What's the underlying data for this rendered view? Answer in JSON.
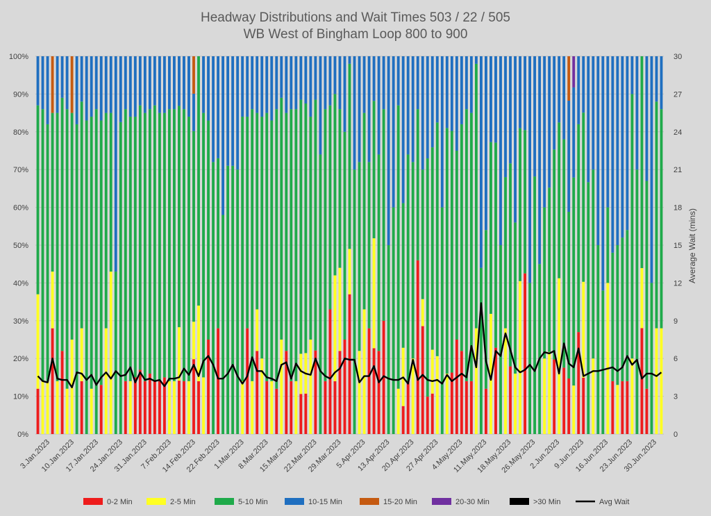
{
  "chart_data": {
    "type": "bar",
    "stacked": true,
    "percent_stacked": true,
    "title": "Headway Distributions and Wait Times 503 / 22 / 505",
    "subtitle": "WB West of Bingham Loop 800 to 900",
    "xlabel": "",
    "ylabel": "",
    "y2label": "Average Wait (mins)",
    "ylim": [
      0,
      100
    ],
    "y_ticks": [
      "0%",
      "10%",
      "20%",
      "30%",
      "40%",
      "50%",
      "60%",
      "70%",
      "80%",
      "90%",
      "100%"
    ],
    "y2lim": [
      0,
      30
    ],
    "y2_ticks": [
      "0",
      "3",
      "6",
      "9",
      "12",
      "15",
      "18",
      "21",
      "24",
      "27",
      "30"
    ],
    "x_tick_labels": [
      "3.Jan.2023",
      "10.Jan.2023",
      "17.Jan.2023",
      "24.Jan.2023",
      "31.Jan.2023",
      "7.Feb.2023",
      "14.Feb.2023",
      "22.Feb.2023",
      "1.Mar.2023",
      "8.Mar.2023",
      "15.Mar.2023",
      "22.Mar.2023",
      "29.Mar.2023",
      "5.Apr.2023",
      "13.Apr.2023",
      "20.Apr.2023",
      "27.Apr.2023",
      "4.May.2023",
      "11.May.2023",
      "18.May.2023",
      "26.May.2023",
      "2.Jun.2023",
      "9.Jun.2023",
      "16.Jun.2023",
      "23.Jun.2023",
      "30.Jun.2023"
    ],
    "legend_position": "bottom",
    "grid": true,
    "colors": {
      "0-2 Min": "#ee1c1c",
      "2-5 Min": "#ffff22",
      "5-10 Min": "#1faa4a",
      "10-15 Min": "#1f6fc0",
      "15-20 Min": "#c55a11",
      "20-30 Min": "#7030a0",
      ">30 Min": "#000000",
      "Avg Wait": "#000000"
    },
    "bar_count": 129,
    "series": [
      {
        "name": "0-2 Min",
        "values": [
          12,
          0,
          0,
          28,
          0,
          22,
          0,
          0,
          0,
          14,
          0,
          0,
          0,
          13,
          0,
          0,
          0,
          0,
          14,
          0,
          15,
          17,
          14,
          16,
          14,
          14,
          15,
          0,
          0,
          14,
          14,
          0,
          22,
          14,
          0,
          25,
          0,
          28,
          0,
          0,
          0,
          0,
          0,
          28,
          0,
          22,
          0,
          14,
          0,
          12,
          0,
          22,
          14,
          0,
          12,
          12,
          0,
          25,
          0,
          14,
          33,
          14,
          22,
          25,
          37,
          0,
          0,
          0,
          28,
          25,
          22,
          30,
          0,
          0,
          0,
          12,
          14,
          0,
          46,
          40,
          11,
          12,
          0,
          0,
          0,
          14,
          25,
          22,
          14,
          14,
          0,
          0,
          12,
          0,
          16,
          0,
          0,
          12,
          0,
          0,
          37,
          0,
          0,
          0,
          0,
          0,
          16,
          0,
          16,
          20,
          0,
          27,
          20,
          0,
          0,
          0,
          0,
          0,
          14,
          0,
          14,
          14,
          0,
          0,
          30,
          12,
          0,
          0,
          0
        ]
      },
      {
        "name": "2-5 Min",
        "values": [
          25,
          14,
          14,
          15,
          14,
          0,
          12,
          25,
          0,
          14,
          0,
          12,
          0,
          0,
          28,
          43,
          0,
          0,
          0,
          14,
          0,
          0,
          0,
          0,
          0,
          0,
          0,
          14,
          14,
          14,
          0,
          14,
          11,
          20,
          15,
          0,
          0,
          0,
          0,
          0,
          0,
          0,
          14,
          0,
          14,
          11,
          20,
          0,
          14,
          0,
          25,
          0,
          0,
          14,
          12,
          12,
          25,
          0,
          0,
          0,
          0,
          28,
          22,
          0,
          12,
          0,
          22,
          33,
          0,
          32,
          0,
          0,
          0,
          0,
          12,
          25,
          0,
          20,
          0,
          10,
          0,
          13,
          20,
          0,
          16,
          0,
          0,
          0,
          0,
          0,
          28,
          0,
          0,
          28,
          0,
          0,
          28,
          0,
          16,
          34,
          0,
          0,
          0,
          0,
          20,
          20,
          0,
          40,
          0,
          0,
          14,
          0,
          34,
          0,
          20,
          0,
          0,
          40,
          0,
          13,
          0,
          0,
          20,
          0,
          17,
          0,
          0,
          28,
          28
        ]
      },
      {
        "name": "5-10 Min",
        "values": [
          50,
          72,
          68,
          42,
          71,
          67,
          74,
          60,
          82,
          60,
          83,
          72,
          86,
          70,
          57,
          42,
          43,
          71,
          72,
          70,
          69,
          70,
          71,
          70,
          73,
          71,
          70,
          72,
          72,
          58,
          72,
          70,
          56,
          66,
          70,
          58,
          72,
          45,
          58,
          71,
          71,
          70,
          70,
          56,
          72,
          52,
          64,
          71,
          69,
          74,
          64,
          63,
          72,
          72,
          76,
          74,
          59,
          75,
          74,
          72,
          54,
          48,
          42,
          55,
          49,
          70,
          50,
          52,
          44,
          40,
          52,
          56,
          50,
          60,
          75,
          62,
          60,
          52,
          40,
          48,
          70,
          60,
          60,
          60,
          65,
          55,
          50,
          60,
          72,
          71,
          70,
          44,
          42,
          40,
          38,
          45,
          40,
          36,
          40,
          34,
          33,
          40,
          60,
          45,
          40,
          40,
          45,
          40,
          55,
          60,
          60,
          55,
          60,
          40,
          50,
          40,
          38,
          20,
          34,
          37,
          38,
          40,
          70,
          70,
          60,
          55,
          40,
          60,
          58
        ]
      },
      {
        "name": "10-15 Min",
        "values": [
          13,
          14,
          18,
          0,
          15,
          11,
          14,
          0,
          18,
          12,
          17,
          16,
          14,
          17,
          15,
          15,
          57,
          15,
          14,
          16,
          16,
          13,
          15,
          14,
          13,
          15,
          15,
          14,
          14,
          13,
          14,
          16,
          11,
          0,
          15,
          17,
          28,
          27,
          42,
          29,
          29,
          30,
          16,
          16,
          14,
          15,
          16,
          15,
          17,
          14,
          11,
          15,
          14,
          14,
          13,
          14,
          16,
          13,
          26,
          14,
          13,
          10,
          14,
          20,
          2,
          30,
          28,
          15,
          28,
          13,
          26,
          14,
          50,
          40,
          13,
          63,
          26,
          28,
          14,
          42,
          30,
          27,
          17,
          40,
          19,
          17,
          25,
          18,
          14,
          15,
          2,
          56,
          46,
          20,
          16,
          45,
          32,
          19,
          44,
          16,
          17,
          60,
          28,
          55,
          40,
          32,
          20,
          17,
          20,
          40,
          26,
          18,
          20,
          20,
          30,
          40,
          62,
          40,
          52,
          50,
          48,
          46,
          10,
          30,
          0,
          33,
          60,
          12,
          14
        ]
      },
      {
        "name": "15-20 Min",
        "values": [
          0,
          0,
          0,
          15,
          0,
          0,
          0,
          15,
          0,
          0,
          0,
          0,
          0,
          0,
          0,
          0,
          0,
          0,
          0,
          0,
          0,
          0,
          0,
          0,
          0,
          0,
          0,
          0,
          0,
          0,
          0,
          0,
          11,
          0,
          0,
          0,
          0,
          0,
          0,
          0,
          0,
          0,
          0,
          0,
          0,
          0,
          0,
          0,
          0,
          0,
          0,
          0,
          0,
          0,
          0,
          0,
          0,
          0,
          0,
          0,
          0,
          0,
          0,
          0,
          0,
          0,
          0,
          0,
          0,
          0,
          0,
          0,
          0,
          0,
          0,
          0,
          0,
          0,
          0,
          0,
          0,
          0,
          0,
          0,
          0,
          0,
          0,
          0,
          0,
          0,
          0,
          0,
          0,
          0,
          0,
          0,
          0,
          0,
          0,
          0,
          0,
          0,
          0,
          0,
          0,
          0,
          0,
          0,
          0,
          16,
          0,
          0,
          0,
          0,
          0,
          0,
          0,
          0,
          0,
          0,
          0,
          0,
          0,
          0,
          0,
          0,
          0,
          0,
          0
        ]
      },
      {
        "name": "20-30 Min",
        "values": [
          0,
          0,
          0,
          0,
          0,
          0,
          0,
          0,
          0,
          0,
          0,
          0,
          0,
          0,
          0,
          0,
          0,
          0,
          0,
          0,
          0,
          0,
          0,
          0,
          0,
          0,
          0,
          0,
          0,
          0,
          0,
          0,
          0,
          0,
          0,
          0,
          0,
          0,
          0,
          0,
          0,
          0,
          0,
          0,
          0,
          0,
          0,
          0,
          0,
          0,
          0,
          0,
          0,
          0,
          0,
          0,
          0,
          0,
          0,
          0,
          0,
          0,
          0,
          0,
          0,
          0,
          0,
          0,
          0,
          0,
          0,
          0,
          0,
          0,
          0,
          0,
          0,
          0,
          0,
          0,
          0,
          0,
          0,
          0,
          0,
          0,
          0,
          0,
          0,
          0,
          0,
          0,
          0,
          0,
          0,
          0,
          0,
          0,
          0,
          0,
          0,
          0,
          0,
          0,
          0,
          0,
          0,
          0,
          0,
          0,
          9,
          0,
          0,
          0,
          0,
          0,
          0,
          0,
          0,
          0,
          0,
          0,
          0,
          0,
          0,
          0,
          0,
          0,
          0
        ]
      },
      {
        "name": ">30 Min",
        "values": [
          0,
          0,
          0,
          0,
          0,
          0,
          0,
          0,
          0,
          0,
          0,
          0,
          0,
          0,
          0,
          0,
          0,
          0,
          0,
          0,
          0,
          0,
          0,
          0,
          0,
          0,
          0,
          0,
          0,
          0,
          0,
          0,
          0,
          0,
          0,
          0,
          0,
          0,
          0,
          0,
          0,
          0,
          0,
          0,
          0,
          0,
          0,
          0,
          0,
          0,
          0,
          0,
          0,
          0,
          0,
          0,
          0,
          0,
          0,
          0,
          0,
          0,
          0,
          0,
          0,
          0,
          0,
          0,
          0,
          0,
          0,
          0,
          0,
          0,
          0,
          0,
          0,
          0,
          0,
          0,
          0,
          0,
          0,
          0,
          0,
          0,
          0,
          0,
          0,
          0,
          0,
          0,
          0,
          0,
          0,
          0,
          0,
          0,
          0,
          0,
          0,
          0,
          0,
          0,
          0,
          0,
          0,
          0,
          0,
          0,
          0,
          0,
          0,
          0,
          0,
          0,
          0,
          0,
          0,
          0,
          0,
          0,
          0,
          0,
          0,
          0,
          0,
          0,
          0
        ]
      }
    ],
    "avg_wait": [
      4.6,
      4.2,
      4.1,
      6.0,
      4.4,
      4.3,
      4.3,
      3.7,
      4.9,
      4.8,
      4.3,
      4.7,
      3.9,
      4.5,
      4.9,
      4.4,
      5.0,
      4.6,
      4.7,
      5.3,
      4.1,
      4.9,
      4.3,
      4.4,
      4.2,
      4.3,
      3.8,
      4.4,
      4.4,
      4.5,
      5.2,
      4.7,
      5.5,
      4.6,
      5.8,
      6.2,
      5.5,
      4.4,
      4.4,
      4.8,
      5.5,
      4.6,
      4.0,
      4.6,
      6.1,
      5.0,
      5.0,
      4.5,
      4.4,
      4.2,
      5.5,
      5.7,
      4.4,
      5.6,
      5.0,
      4.8,
      4.7,
      6.0,
      5.0,
      4.6,
      4.4,
      4.9,
      5.2,
      6.0,
      5.9,
      5.9,
      4.1,
      4.6,
      4.6,
      5.4,
      4.1,
      4.6,
      4.4,
      4.3,
      4.3,
      4.5,
      4.0,
      5.9,
      4.3,
      4.7,
      4.3,
      4.2,
      4.3,
      4.0,
      4.7,
      4.2,
      4.5,
      4.8,
      4.5,
      7.0,
      5.3,
      10.4,
      5.8,
      4.3,
      6.6,
      6.2,
      8.0,
      6.7,
      5.3,
      4.9,
      5.1,
      5.5,
      5.0,
      6.0,
      6.5,
      6.4,
      6.6,
      4.8,
      7.2,
      5.6,
      5.3,
      6.8,
      4.6,
      4.8,
      5.0,
      5.0,
      5.1,
      5.2,
      5.3,
      5.0,
      5.3,
      6.2,
      5.5,
      5.9,
      4.4,
      4.8,
      4.8,
      4.6,
      4.9
    ],
    "legend": [
      "0-2 Min",
      "2-5 Min",
      "5-10 Min",
      "10-15 Min",
      "15-20 Min",
      "20-30 Min",
      ">30 Min",
      "Avg Wait"
    ]
  }
}
